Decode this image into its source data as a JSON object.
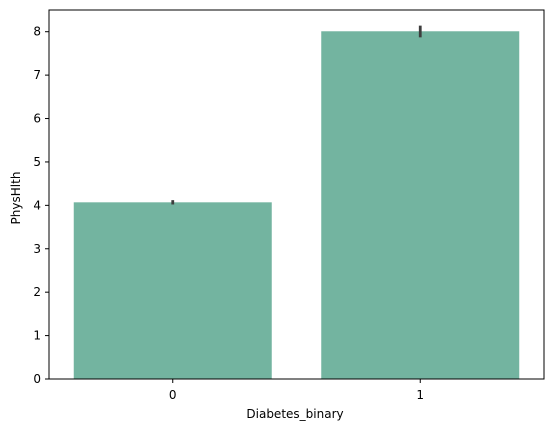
{
  "chart_data": {
    "type": "bar",
    "title": "",
    "xlabel": "Diabetes_binary",
    "ylabel": "PhysHlth",
    "categories": [
      "0",
      "1"
    ],
    "values": [
      4.07,
      8.01
    ],
    "error_bars": [
      {
        "low": 4.02,
        "high": 4.12
      },
      {
        "low": 7.87,
        "high": 8.14
      }
    ],
    "ylim": [
      0,
      8.5
    ],
    "yticks": [
      "0",
      "1",
      "2",
      "3",
      "4",
      "5",
      "6",
      "7",
      "8"
    ],
    "grid": false,
    "legend": "none",
    "colors": {
      "bar": "#73b4a0",
      "error_bar": "#3d3d3d",
      "axis": "#000000"
    }
  }
}
